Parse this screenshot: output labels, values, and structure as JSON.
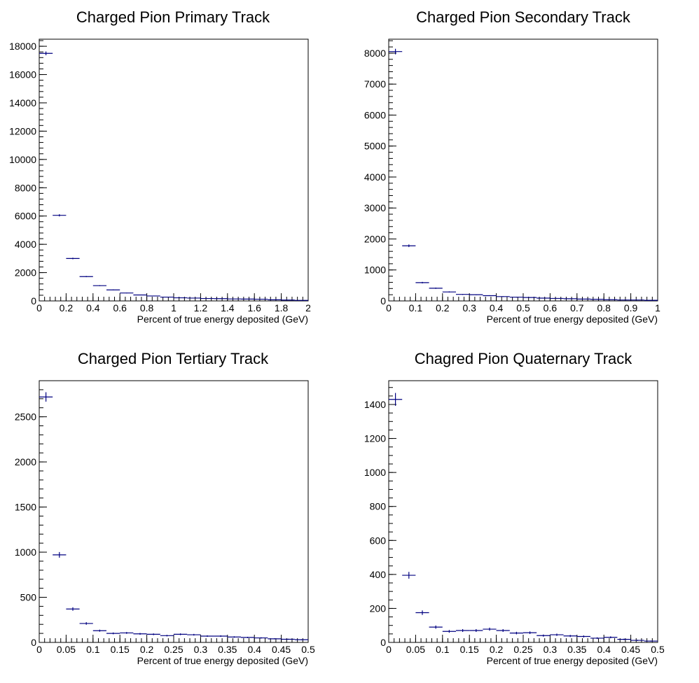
{
  "chart_data": [
    {
      "type": "histogram",
      "title": "Charged Pion Primary Track",
      "xlabel": "Percent of true energy deposited (GeV)",
      "ylabel": "",
      "xlim": [
        0,
        2
      ],
      "ylim": [
        0,
        18500
      ],
      "bin_width": 0.1,
      "x": [
        0.05,
        0.15,
        0.25,
        0.35,
        0.45,
        0.55,
        0.65,
        0.75,
        0.85,
        0.95,
        1.05,
        1.15,
        1.25,
        1.35,
        1.45,
        1.55,
        1.65,
        1.75,
        1.85,
        1.95
      ],
      "values": [
        17500,
        6050,
        3000,
        1720,
        1080,
        780,
        560,
        420,
        350,
        270,
        220,
        200,
        170,
        160,
        140,
        130,
        120,
        80,
        60,
        40
      ],
      "xticks": [
        0,
        0.2,
        0.4,
        0.6,
        0.8,
        1,
        1.2,
        1.4,
        1.6,
        1.8,
        2
      ],
      "xtick_labels": [
        "0",
        "0.2",
        "0.4",
        "0.6",
        "0.8",
        "1",
        "1.2",
        "1.4",
        "1.6",
        "1.8",
        "2"
      ],
      "yticks": [
        0,
        2000,
        4000,
        6000,
        8000,
        10000,
        12000,
        14000,
        16000,
        18000
      ],
      "ytick_labels": [
        "0",
        "2000",
        "4000",
        "6000",
        "8000",
        "10000",
        "12000",
        "14000",
        "16000",
        "18000"
      ],
      "minor_x": 0.04,
      "minor_y": 400
    },
    {
      "type": "histogram",
      "title": "Charged Pion Secondary Track",
      "xlabel": "Percent of true energy deposited (GeV)",
      "ylabel": "",
      "xlim": [
        0,
        1
      ],
      "ylim": [
        0,
        8450
      ],
      "bin_width": 0.05,
      "x": [
        0.025,
        0.075,
        0.125,
        0.175,
        0.225,
        0.275,
        0.325,
        0.375,
        0.425,
        0.475,
        0.525,
        0.575,
        0.625,
        0.675,
        0.725,
        0.775,
        0.825,
        0.875,
        0.925,
        0.975
      ],
      "values": [
        8050,
        1780,
        590,
        410,
        290,
        210,
        200,
        170,
        140,
        120,
        110,
        90,
        80,
        70,
        60,
        50,
        40,
        30,
        30,
        20
      ],
      "xticks": [
        0,
        0.1,
        0.2,
        0.3,
        0.4,
        0.5,
        0.6,
        0.7,
        0.8,
        0.9,
        1
      ],
      "xtick_labels": [
        "0",
        "0.1",
        "0.2",
        "0.3",
        "0.4",
        "0.5",
        "0.6",
        "0.7",
        "0.8",
        "0.9",
        "1"
      ],
      "yticks": [
        0,
        1000,
        2000,
        3000,
        4000,
        5000,
        6000,
        7000,
        8000
      ],
      "ytick_labels": [
        "0",
        "1000",
        "2000",
        "3000",
        "4000",
        "5000",
        "6000",
        "7000",
        "8000"
      ],
      "minor_x": 0.02,
      "minor_y": 200
    },
    {
      "type": "histogram",
      "title": "Charged Pion Tertiary Track",
      "xlabel": "Percent of true energy deposited (GeV)",
      "ylabel": "",
      "xlim": [
        0,
        0.5
      ],
      "ylim": [
        0,
        2900
      ],
      "bin_width": 0.025,
      "x": [
        0.0125,
        0.0375,
        0.0625,
        0.0875,
        0.1125,
        0.1375,
        0.1625,
        0.1875,
        0.2125,
        0.2375,
        0.2625,
        0.2875,
        0.3125,
        0.3375,
        0.3625,
        0.3875,
        0.4125,
        0.4375,
        0.4625,
        0.4875
      ],
      "values": [
        2720,
        970,
        370,
        210,
        130,
        100,
        105,
        95,
        90,
        75,
        90,
        85,
        70,
        70,
        60,
        55,
        50,
        40,
        35,
        30
      ],
      "xticks": [
        0,
        0.05,
        0.1,
        0.15,
        0.2,
        0.25,
        0.3,
        0.35,
        0.4,
        0.45,
        0.5
      ],
      "xtick_labels": [
        "0",
        "0.05",
        "0.1",
        "0.15",
        "0.2",
        "0.25",
        "0.3",
        "0.35",
        "0.4",
        "0.45",
        "0.5"
      ],
      "yticks": [
        0,
        500,
        1000,
        1500,
        2000,
        2500
      ],
      "ytick_labels": [
        "0",
        "500",
        "1000",
        "1500",
        "2000",
        "2500"
      ],
      "minor_x": 0.01,
      "minor_y": 100
    },
    {
      "type": "histogram",
      "title": "Chagred Pion Quaternary Track",
      "xlabel": "Percent of true energy deposited (GeV)",
      "ylabel": "",
      "xlim": [
        0,
        0.5
      ],
      "ylim": [
        0,
        1540
      ],
      "bin_width": 0.025,
      "x": [
        0.0125,
        0.0375,
        0.0625,
        0.0875,
        0.1125,
        0.1375,
        0.1625,
        0.1875,
        0.2125,
        0.2375,
        0.2625,
        0.2875,
        0.3125,
        0.3375,
        0.3625,
        0.3875,
        0.4125,
        0.4375,
        0.4625,
        0.4875
      ],
      "values": [
        1430,
        395,
        175,
        90,
        65,
        70,
        70,
        78,
        70,
        55,
        57,
        40,
        45,
        38,
        35,
        25,
        30,
        18,
        12,
        8
      ],
      "xticks": [
        0,
        0.05,
        0.1,
        0.15,
        0.2,
        0.25,
        0.3,
        0.35,
        0.4,
        0.45,
        0.5
      ],
      "xtick_labels": [
        "0",
        "0.05",
        "0.1",
        "0.15",
        "0.2",
        "0.25",
        "0.3",
        "0.35",
        "0.4",
        "0.45",
        "0.5"
      ],
      "yticks": [
        0,
        200,
        400,
        600,
        800,
        1000,
        1200,
        1400
      ],
      "ytick_labels": [
        "0",
        "200",
        "400",
        "600",
        "800",
        "1000",
        "1200",
        "1400"
      ],
      "minor_x": 0.01,
      "minor_y": 50
    }
  ],
  "colors": {
    "marker": "#000080",
    "axis": "#000000"
  }
}
